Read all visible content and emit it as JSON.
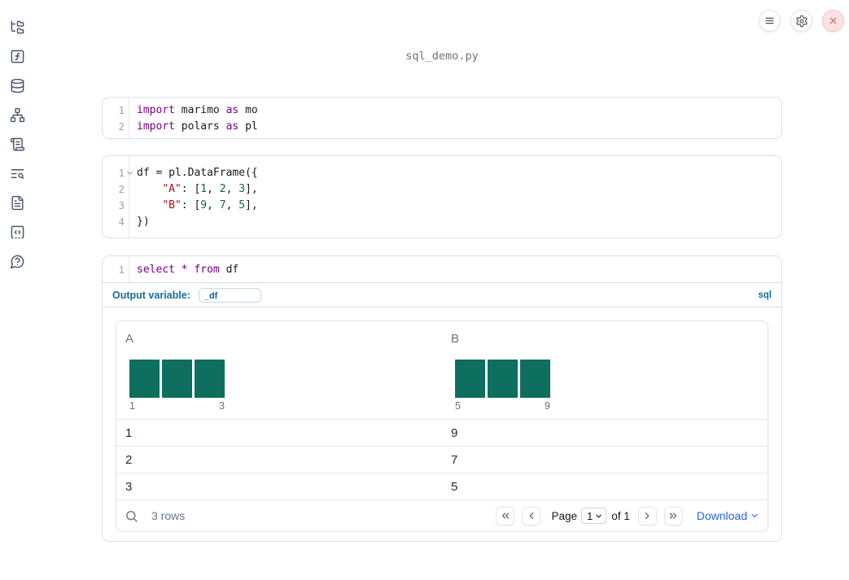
{
  "app": {
    "filename": "sql_demo.py"
  },
  "topbar": {
    "buttons": [
      "menu",
      "settings",
      "close"
    ]
  },
  "sidebar": {
    "items": [
      {
        "name": "file-explorer"
      },
      {
        "name": "variables"
      },
      {
        "name": "datasources"
      },
      {
        "name": "dependency-graph"
      },
      {
        "name": "logs"
      },
      {
        "name": "trace-search"
      },
      {
        "name": "documentation"
      },
      {
        "name": "snippets"
      },
      {
        "name": "help"
      }
    ]
  },
  "colors": {
    "keyword": "#770088",
    "string": "#aa1111",
    "number": "#116644",
    "histogram_bar": "#0e6f5e",
    "accent_blue": "#2563eb",
    "sql_label_blue": "#136c9e",
    "close_button_red": "#dd5454"
  },
  "cells": [
    {
      "name": "imports-cell",
      "lines": [
        {
          "n": "1",
          "tokens": [
            {
              "c": "kw",
              "t": "import"
            },
            {
              "c": "pl",
              "t": " marimo "
            },
            {
              "c": "kw",
              "t": "as"
            },
            {
              "c": "pl",
              "t": " mo"
            }
          ]
        },
        {
          "n": "2",
          "tokens": [
            {
              "c": "kw",
              "t": "import"
            },
            {
              "c": "pl",
              "t": " polars "
            },
            {
              "c": "kw",
              "t": "as"
            },
            {
              "c": "pl",
              "t": " pl"
            }
          ]
        }
      ]
    },
    {
      "name": "dataframe-cell",
      "lines": [
        {
          "n": "1",
          "fold": true,
          "tokens": [
            {
              "c": "pl",
              "t": "df = pl.DataFrame({"
            }
          ]
        },
        {
          "n": "2",
          "tokens": [
            {
              "c": "pl",
              "t": "    "
            },
            {
              "c": "str",
              "t": "\"A\""
            },
            {
              "c": "pl",
              "t": ": ["
            },
            {
              "c": "num",
              "t": "1"
            },
            {
              "c": "pl",
              "t": ", "
            },
            {
              "c": "num",
              "t": "2"
            },
            {
              "c": "pl",
              "t": ", "
            },
            {
              "c": "num",
              "t": "3"
            },
            {
              "c": "pl",
              "t": "],"
            }
          ]
        },
        {
          "n": "3",
          "tokens": [
            {
              "c": "pl",
              "t": "    "
            },
            {
              "c": "str",
              "t": "\"B\""
            },
            {
              "c": "pl",
              "t": ": ["
            },
            {
              "c": "num",
              "t": "9"
            },
            {
              "c": "pl",
              "t": ", "
            },
            {
              "c": "num",
              "t": "7"
            },
            {
              "c": "pl",
              "t": ", "
            },
            {
              "c": "num",
              "t": "5"
            },
            {
              "c": "pl",
              "t": "],"
            }
          ]
        },
        {
          "n": "4",
          "tokens": [
            {
              "c": "pl",
              "t": "})"
            }
          ]
        }
      ]
    },
    {
      "name": "sql-cell",
      "lines": [
        {
          "n": "1",
          "tokens": [
            {
              "c": "kw",
              "t": "select"
            },
            {
              "c": "pl",
              "t": " "
            },
            {
              "c": "kw",
              "t": "*"
            },
            {
              "c": "pl",
              "t": " "
            },
            {
              "c": "kw",
              "t": "from"
            },
            {
              "c": "pl",
              "t": " df"
            }
          ]
        }
      ]
    }
  ],
  "sql_cell": {
    "output_variable_label": "Output variable:",
    "output_variable_value": "_df",
    "language_badge": "sql"
  },
  "table": {
    "columns": [
      {
        "label": "A",
        "axis_min": "1",
        "axis_max": "3"
      },
      {
        "label": "B",
        "axis_min": "5",
        "axis_max": "9"
      }
    ],
    "rows": [
      [
        "1",
        "9"
      ],
      [
        "2",
        "7"
      ],
      [
        "3",
        "5"
      ]
    ],
    "footer": {
      "row_count": "3 rows",
      "page_label": "Page",
      "page_value": "1",
      "of_label": "of 1",
      "download_label": "Download"
    }
  },
  "chart_data": [
    {
      "type": "bar",
      "title": "column A histogram",
      "x": [
        1,
        2,
        3
      ],
      "values": [
        1,
        1,
        1
      ],
      "axis_labels": [
        "1",
        "3"
      ]
    },
    {
      "type": "bar",
      "title": "column B histogram",
      "x": [
        5,
        7,
        9
      ],
      "values": [
        1,
        1,
        1
      ],
      "axis_labels": [
        "5",
        "9"
      ]
    }
  ]
}
